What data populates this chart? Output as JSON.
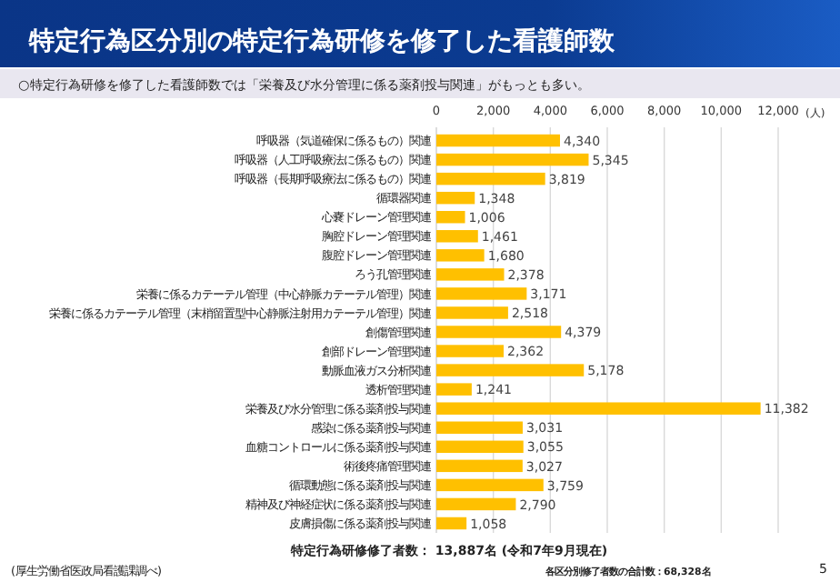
{
  "chart_data": {
    "type": "bar",
    "orientation": "horizontal",
    "title": "特定行為区分別の特定行為研修を修了した看護師数",
    "subtitle": "○特定行為研修を修了した看護師数では「栄養及び水分管理に係る薬剤投与関連」がもっとも多い。",
    "xlabel": "(人)",
    "categories": [
      "呼吸器（気道確保に係るもの）関連",
      "呼吸器（人工呼吸療法に係るもの）関連",
      "呼吸器（長期呼吸療法に係るもの）関連",
      "循環器関連",
      "心嚢ドレーン管理関連",
      "胸腔ドレーン管理関連",
      "腹腔ドレーン管理関連",
      "ろう孔管理関連",
      "栄養に係るカテーテル管理（中心静脈カテーテル管理）関連",
      "栄養に係るカテーテル管理（末梢留置型中心静脈注射用カテーテル管理）関連",
      "創傷管理関連",
      "創部ドレーン管理関連",
      "動脈血液ガス分析関連",
      "透析管理関連",
      "栄養及び水分管理に係る薬剤投与関連",
      "感染に係る薬剤投与関連",
      "血糖コントロールに係る薬剤投与関連",
      "術後疼痛管理関連",
      "循環動態に係る薬剤投与関連",
      "精神及び神経症状に係る薬剤投与関連",
      "皮膚損傷に係る薬剤投与関連"
    ],
    "values": [
      4340,
      5345,
      3819,
      1348,
      1006,
      1461,
      1680,
      2378,
      3171,
      2518,
      4379,
      2362,
      5178,
      1241,
      11382,
      3031,
      3055,
      3027,
      3759,
      2790,
      1058
    ],
    "value_labels": [
      "4,340",
      "5,345",
      "3,819",
      "1,348",
      "1,006",
      "1,461",
      "1,680",
      "2,378",
      "3,171",
      "2,518",
      "4,379",
      "2,362",
      "5,178",
      "1,241",
      "11,382",
      "3,031",
      "3,055",
      "3,027",
      "3,759",
      "2,790",
      "1,058"
    ],
    "color": "#ffc000",
    "xlim": [
      0,
      12000
    ],
    "xticks": [
      0,
      {
        "value": 2000,
        "label": "2,000"
      },
      {
        "value": 4000,
        "label": "4,000"
      },
      {
        "value": 6000,
        "label": "6,000"
      },
      {
        "value": 8000,
        "label": "8,000"
      },
      {
        "value": 10000,
        "label": "10,000"
      },
      {
        "value": 12000,
        "label": "12,000"
      }
    ],
    "grid": "x",
    "annotations": [
      "特定行為研修修了者数：  13,887名 (令和7年9月現在)",
      "各区分別修了者数の合計数：68,328名",
      "(厚生労働省医政局看護課調べ)",
      "5"
    ]
  }
}
